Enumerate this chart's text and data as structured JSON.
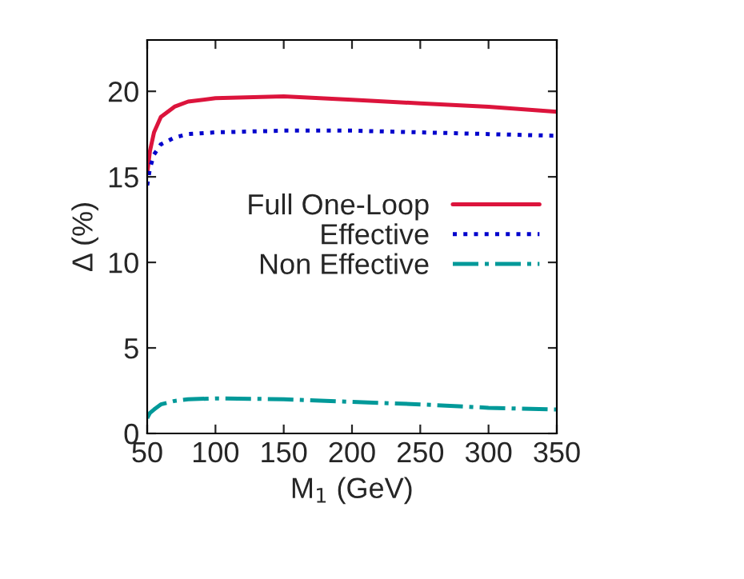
{
  "chart_data": {
    "type": "line",
    "xlabel": "M$_{1}$ (GeV)",
    "ylabel": "Δ (%)",
    "xlim": [
      50,
      350
    ],
    "ylim": [
      0,
      23
    ],
    "xticks": [
      50,
      100,
      150,
      200,
      250,
      300,
      350
    ],
    "yticks": [
      0,
      5,
      10,
      15,
      20
    ],
    "grid": false,
    "legend": "right",
    "marker": "none",
    "series": [
      {
        "name": "Full One-Loop",
        "color": "#dc143c",
        "line_style": "solid",
        "x": [
          50,
          52,
          55,
          60,
          70,
          80,
          100,
          150,
          200,
          250,
          300,
          350
        ],
        "values": [
          15.2,
          16.5,
          17.6,
          18.5,
          19.1,
          19.4,
          19.6,
          19.7,
          19.5,
          19.3,
          19.1,
          18.8
        ]
      },
      {
        "name": "Effective",
        "color": "#0000cc",
        "line_style": "dotted",
        "x": [
          50,
          52,
          55,
          60,
          70,
          80,
          100,
          150,
          200,
          250,
          300,
          350
        ],
        "values": [
          14.5,
          15.5,
          16.3,
          16.9,
          17.3,
          17.5,
          17.6,
          17.7,
          17.7,
          17.6,
          17.5,
          17.4
        ]
      },
      {
        "name": "Non Effective",
        "color": "#009999",
        "line_style": "dashdot",
        "x": [
          50,
          52,
          55,
          60,
          70,
          80,
          100,
          150,
          200,
          250,
          300,
          350
        ],
        "values": [
          0.9,
          1.2,
          1.4,
          1.7,
          1.9,
          2.0,
          2.05,
          2.0,
          1.85,
          1.7,
          1.5,
          1.4
        ]
      }
    ]
  }
}
